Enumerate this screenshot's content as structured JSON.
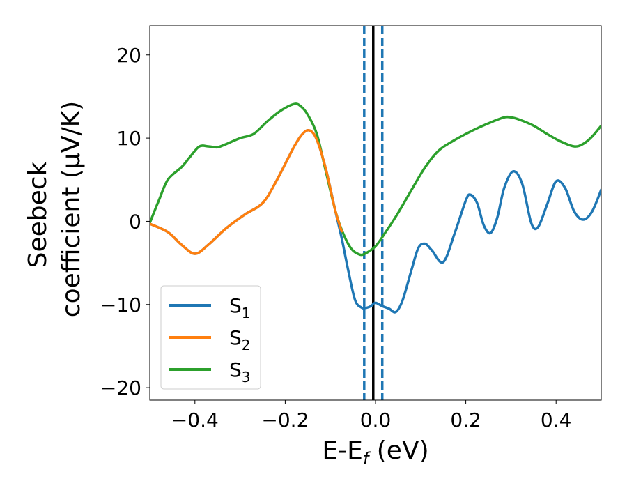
{
  "chart_data": {
    "type": "line",
    "xlabel": "E-E",
    "xlabel_subscript": "f",
    "xlabel_unit": " (eV)",
    "ylabel_line1": "Seebeck",
    "ylabel_line2": "coefficient  (μV/K)",
    "xlim": [
      -0.5,
      0.5
    ],
    "ylim": [
      -21.5,
      23.5
    ],
    "xticks": [
      -0.4,
      -0.2,
      0.0,
      0.2,
      0.4
    ],
    "xtick_labels": [
      "−0.4",
      "−0.2",
      "0.0",
      "0.2",
      "0.4"
    ],
    "yticks": [
      -20,
      -10,
      0,
      10,
      20
    ],
    "ytick_labels": [
      "−20",
      "−10",
      "0",
      "10",
      "20"
    ],
    "grid": false,
    "legend_location": "lower-left",
    "vlines": [
      {
        "x": -0.025,
        "style": "dashed",
        "color": "#1f77b4"
      },
      {
        "x": 0.015,
        "style": "dashed",
        "color": "#1f77b4"
      },
      {
        "x": -0.005,
        "style": "solid",
        "color": "#000000"
      }
    ],
    "series": [
      {
        "name": "S",
        "subscript": "1",
        "color": "#1f77b4",
        "x": [
          -0.5,
          -0.46,
          -0.43,
          -0.4,
          -0.37,
          -0.33,
          -0.29,
          -0.25,
          -0.22,
          -0.18,
          -0.16,
          -0.145,
          -0.13,
          -0.11,
          -0.09,
          -0.075,
          -0.06,
          -0.045,
          -0.03,
          -0.02,
          -0.01,
          0.0,
          0.015,
          0.03,
          0.045,
          0.06,
          0.08,
          0.095,
          0.11,
          0.125,
          0.15,
          0.175,
          0.2,
          0.21,
          0.225,
          0.24,
          0.255,
          0.27,
          0.285,
          0.305,
          0.325,
          0.345,
          0.36,
          0.38,
          0.4,
          0.42,
          0.44,
          0.46,
          0.48,
          0.5
        ],
        "y": [
          -0.3,
          -1.3,
          -2.8,
          -3.9,
          -2.8,
          -0.8,
          0.8,
          2.2,
          4.8,
          9.0,
          10.6,
          10.9,
          9.8,
          6.3,
          1.5,
          -2.0,
          -6.0,
          -9.5,
          -10.4,
          -10.4,
          -10.2,
          -9.8,
          -10.2,
          -10.5,
          -10.9,
          -9.5,
          -5.8,
          -3.2,
          -2.7,
          -3.5,
          -4.9,
          -1.5,
          2.5,
          3.2,
          2.2,
          -0.5,
          -1.4,
          0.5,
          4.0,
          6.0,
          4.5,
          -0.2,
          -0.7,
          2.0,
          4.8,
          4.0,
          1.2,
          0.2,
          1.2,
          3.8
        ]
      },
      {
        "name": "S",
        "subscript": "2",
        "color": "#ff7f0e",
        "x": [
          -0.5,
          -0.46,
          -0.43,
          -0.4,
          -0.37,
          -0.33,
          -0.29,
          -0.25,
          -0.22,
          -0.18,
          -0.16,
          -0.145,
          -0.13,
          -0.11,
          -0.09,
          -0.075
        ],
        "y": [
          -0.3,
          -1.3,
          -2.8,
          -3.9,
          -2.8,
          -0.8,
          0.8,
          2.2,
          4.8,
          9.0,
          10.6,
          10.9,
          9.8,
          6.3,
          1.5,
          -1.2
        ]
      },
      {
        "name": "S",
        "subscript": "3",
        "color": "#2ca02c",
        "x": [
          -0.5,
          -0.48,
          -0.46,
          -0.43,
          -0.41,
          -0.39,
          -0.37,
          -0.35,
          -0.33,
          -0.3,
          -0.27,
          -0.24,
          -0.21,
          -0.18,
          -0.165,
          -0.15,
          -0.13,
          -0.11,
          -0.09,
          -0.075,
          -0.055,
          -0.035,
          -0.02,
          0.0,
          0.02,
          0.05,
          0.08,
          0.11,
          0.14,
          0.17,
          0.2,
          0.23,
          0.26,
          0.285,
          0.3,
          0.32,
          0.35,
          0.38,
          0.41,
          0.44,
          0.46,
          0.48,
          0.5
        ],
        "y": [
          -0.2,
          2.5,
          5.0,
          6.5,
          7.8,
          9.0,
          9.0,
          8.9,
          9.3,
          10.0,
          10.5,
          12.0,
          13.3,
          14.1,
          13.8,
          12.8,
          10.5,
          6.0,
          1.5,
          -1.0,
          -3.2,
          -4.0,
          -3.8,
          -3.0,
          -1.5,
          1.0,
          3.8,
          6.5,
          8.5,
          9.6,
          10.5,
          11.3,
          12.0,
          12.5,
          12.5,
          12.2,
          11.5,
          10.5,
          9.6,
          9.0,
          9.3,
          10.2,
          11.5
        ]
      }
    ]
  }
}
